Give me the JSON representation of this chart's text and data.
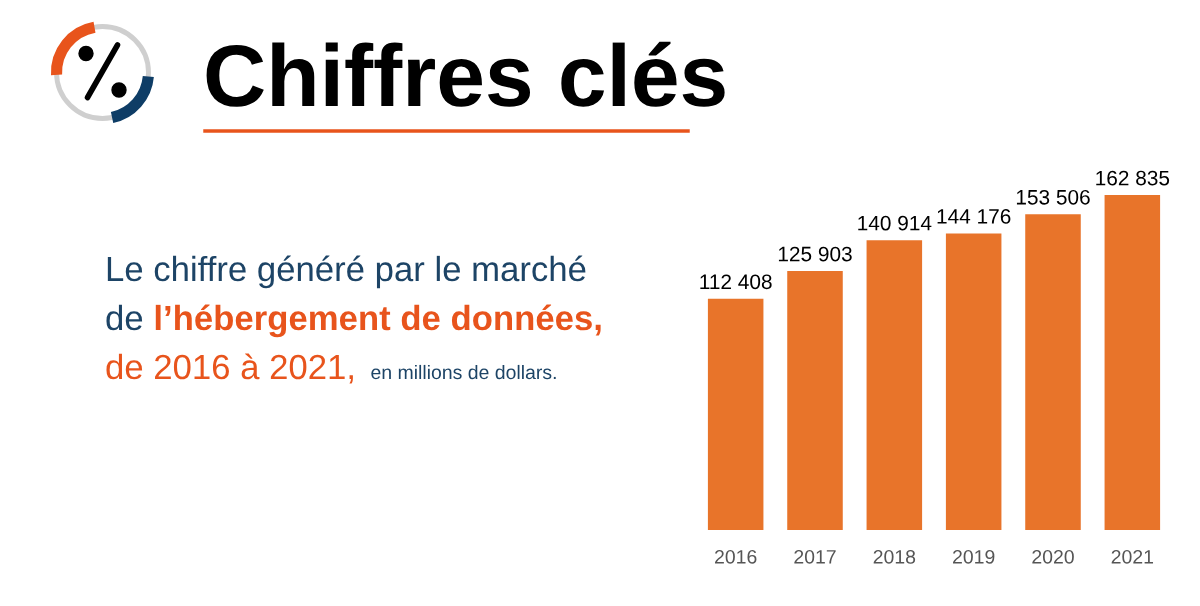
{
  "chart_data": {
    "type": "bar",
    "title": "Chiffres clés",
    "subtitle": "Le chiffre généré par le marché\nde l’hébergement de données,",
    "annotations": [
      "de 2016 à 2021,",
      "en millions de dollars."
    ],
    "categories": [
      "2016",
      "2017",
      "2018",
      "2019",
      "2020",
      "2021"
    ],
    "values": [
      112408,
      125903,
      140914,
      144176,
      153506,
      162835
    ],
    "color": "#e8742a",
    "value_labels": [
      "112 408",
      "125 903",
      "140 914",
      "144 176",
      "153 506",
      "162 835"
    ],
    "grid": false,
    "legend": false
  }
}
